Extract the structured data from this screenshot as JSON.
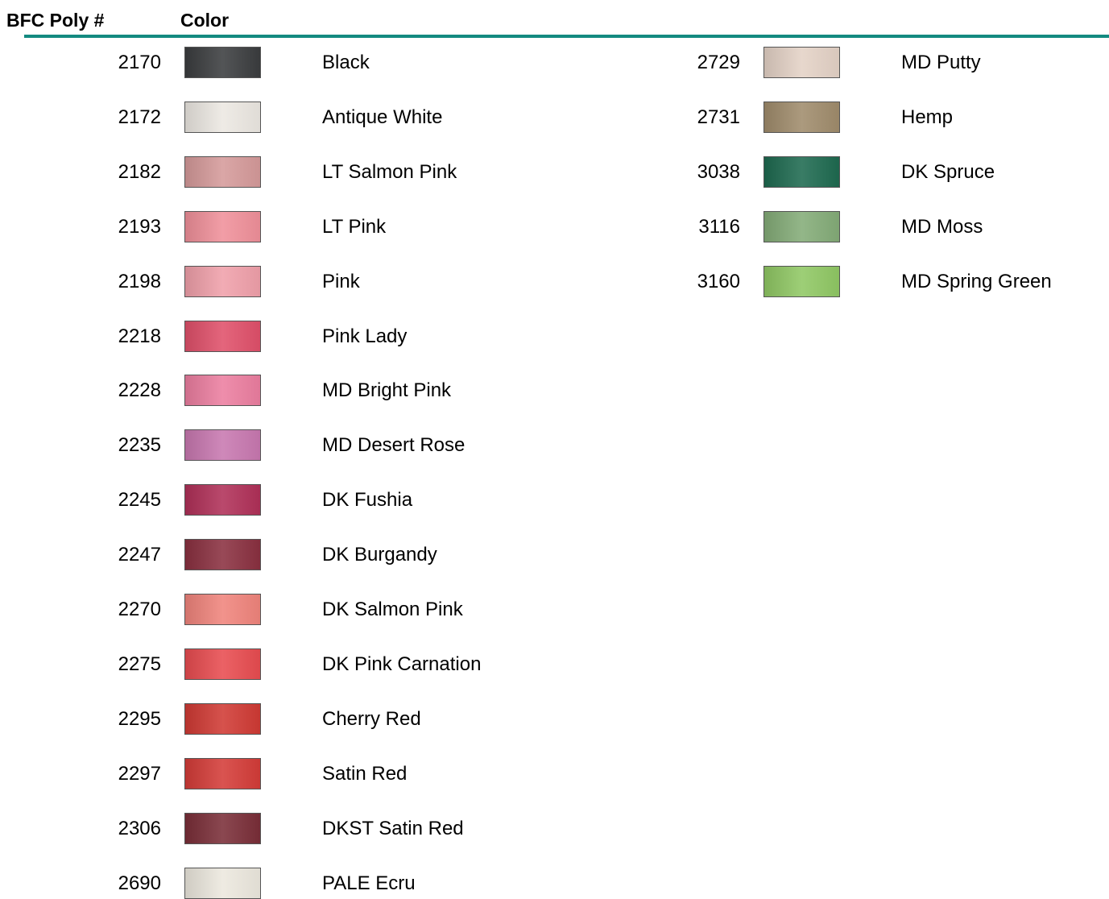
{
  "header": {
    "number": "BFC Poly #",
    "color": "Color"
  },
  "columns": [
    {
      "rows": [
        {
          "number": "2170",
          "color": "#3b3d3f",
          "name": "Black"
        },
        {
          "number": "2172",
          "color": "#ece8e2",
          "name": "Antique White"
        },
        {
          "number": "2182",
          "color": "#d59a9a",
          "name": "LT Salmon Pink"
        },
        {
          "number": "2193",
          "color": "#f0909a",
          "name": "LT Pink"
        },
        {
          "number": "2198",
          "color": "#f0a0aa",
          "name": "Pink"
        },
        {
          "number": "2218",
          "color": "#e0506a",
          "name": "Pink Lady"
        },
        {
          "number": "2228",
          "color": "#ec7ea0",
          "name": "MD Bright Pink"
        },
        {
          "number": "2235",
          "color": "#c878b0",
          "name": "MD Desert Rose"
        },
        {
          "number": "2245",
          "color": "#b03058",
          "name": "DK Fushia"
        },
        {
          "number": "2247",
          "color": "#8a3040",
          "name": "DK Burgandy"
        },
        {
          "number": "2270",
          "color": "#f0847c",
          "name": "DK Salmon Pink"
        },
        {
          "number": "2275",
          "color": "#e84c50",
          "name": "DK Pink Carnation"
        },
        {
          "number": "2295",
          "color": "#d03a34",
          "name": "Cherry Red"
        },
        {
          "number": "2297",
          "color": "#d43c38",
          "name": "Satin Red"
        },
        {
          "number": "2306",
          "color": "#7a2e38",
          "name": "DKST Satin Red"
        },
        {
          "number": "2690",
          "color": "#ece8de",
          "name": "PALE Ecru"
        }
      ]
    },
    {
      "rows": [
        {
          "number": "2729",
          "color": "#e4d2c6",
          "name": "MD Putty"
        },
        {
          "number": "2731",
          "color": "#a08c6c",
          "name": "Hemp"
        },
        {
          "number": "3038",
          "color": "#1e6a50",
          "name": "DK Spruce"
        },
        {
          "number": "3116",
          "color": "#84ac78",
          "name": "MD Moss"
        },
        {
          "number": "3160",
          "color": "#90c864",
          "name": "MD Spring Green"
        }
      ]
    }
  ]
}
